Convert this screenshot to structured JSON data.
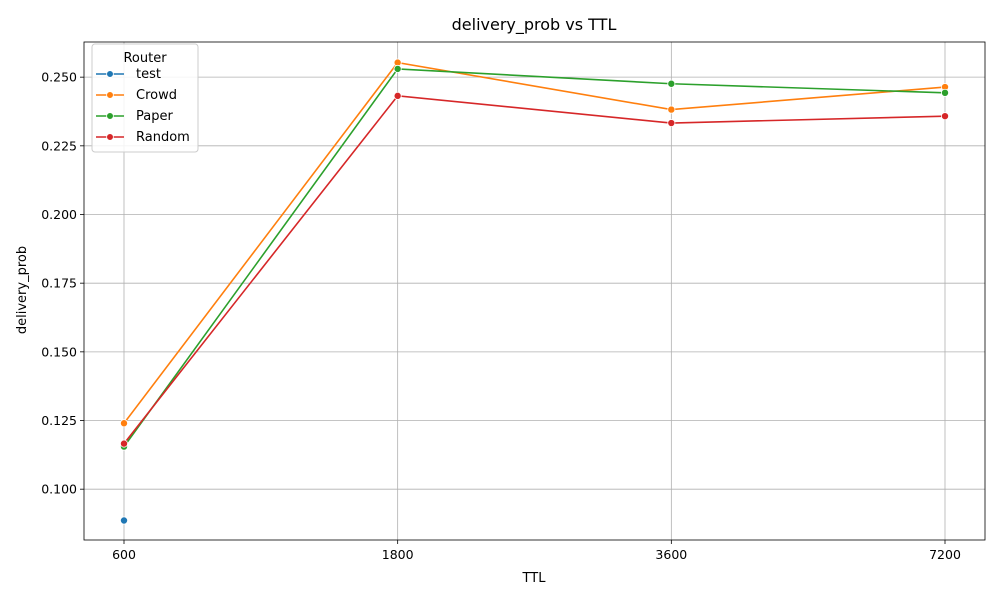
{
  "chart_data": {
    "type": "line",
    "title": "delivery_prob vs TTL",
    "xlabel": "TTL",
    "ylabel": "delivery_prob",
    "categories": [
      "600",
      "1800",
      "3600",
      "7200"
    ],
    "yticks": [
      "0.100",
      "0.125",
      "0.150",
      "0.175",
      "0.200",
      "0.225",
      "0.250"
    ],
    "ylim": [
      0.0815,
      0.2628
    ],
    "grid": true,
    "legend": {
      "title": "Router",
      "placement": "top-left"
    },
    "series": [
      {
        "name": "test",
        "color": "#1f77b4",
        "values": [
          0.0886,
          null,
          null,
          null
        ]
      },
      {
        "name": "Crowd",
        "color": "#ff7f0e",
        "values": [
          0.124,
          0.2553,
          0.2382,
          0.2464
        ]
      },
      {
        "name": "Paper",
        "color": "#2ca02c",
        "values": [
          0.1155,
          0.253,
          0.2476,
          0.2443
        ]
      },
      {
        "name": "Random",
        "color": "#d62728",
        "values": [
          0.1166,
          0.2432,
          0.2333,
          0.2358
        ]
      }
    ]
  }
}
